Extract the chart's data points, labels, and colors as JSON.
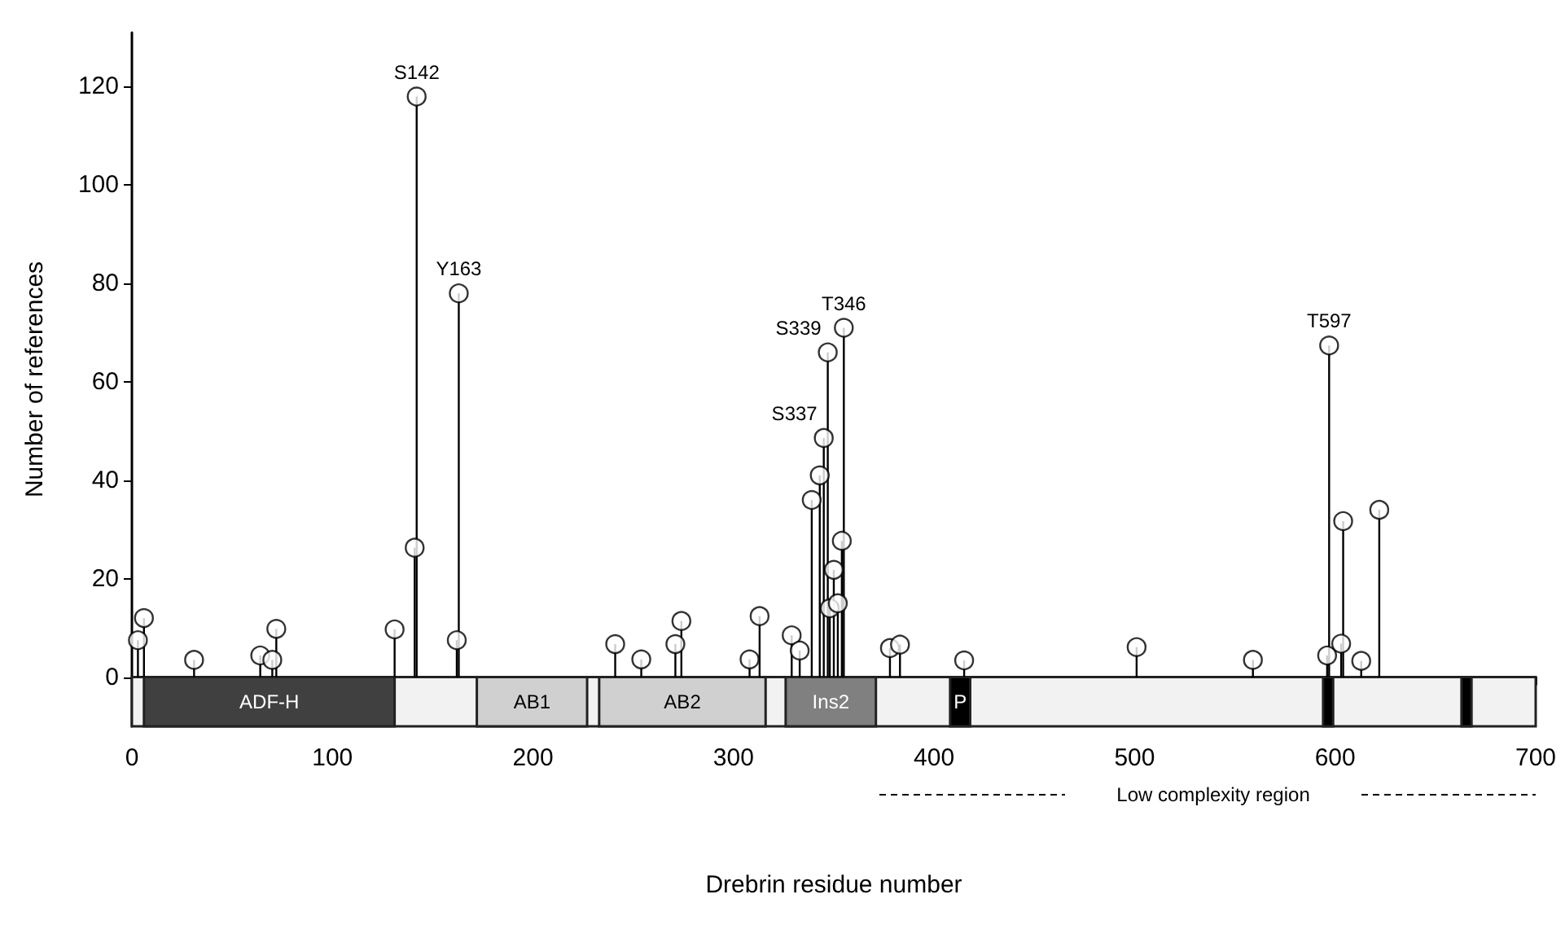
{
  "chart_data": {
    "type": "lollipop",
    "xlabel": "Drebrin residue number",
    "ylabel": "Number of references",
    "x": [
      3,
      6,
      31,
      64,
      70,
      72,
      131,
      141,
      142,
      162,
      163,
      241,
      254,
      271,
      274,
      308,
      313,
      329,
      333,
      339,
      343,
      345,
      347,
      348,
      350,
      352,
      354,
      355,
      378,
      383,
      415,
      501,
      559,
      596,
      597,
      603,
      604,
      613,
      622
    ],
    "values": [
      7.5,
      12,
      3.5,
      4.4,
      3.5,
      9.8,
      9.7,
      26.3,
      118,
      7.5,
      78,
      6.7,
      3.6,
      6.7,
      11.4,
      3.6,
      12.4,
      8.5,
      5.4,
      36,
      41,
      48.6,
      66,
      14,
      21.8,
      15,
      27.7,
      71,
      5.9,
      6.6,
      3.4,
      6.1,
      3.5,
      4.4,
      67.4,
      6.8,
      31.7,
      3.3,
      34
    ],
    "color": "#000000",
    "marker": "circle",
    "xlim": [
      0,
      700
    ],
    "xticks": [
      0,
      100,
      200,
      300,
      400,
      500,
      600,
      700
    ],
    "ylim": [
      -10,
      131
    ],
    "yticks": [
      0,
      20,
      40,
      60,
      80,
      100,
      120
    ],
    "annotations": [
      {
        "text": "S142",
        "x": 142,
        "y": 118
      },
      {
        "text": "Y163",
        "x": 163,
        "y": 78
      },
      {
        "text": "S337",
        "x": 345,
        "y": 48.6
      },
      {
        "text": "S339",
        "x": 347,
        "y": 66
      },
      {
        "text": "T346",
        "x": 355,
        "y": 71
      },
      {
        "text": "T597",
        "x": 597,
        "y": 67.4
      },
      "Low complexity region"
    ],
    "bands": [
      {
        "axis": "x",
        "from": 0,
        "to": 700,
        "color": "#f2f2f2"
      },
      {
        "axis": "x",
        "from": 6,
        "to": 131,
        "label": "ADF-H",
        "color": "#404040"
      },
      {
        "axis": "x",
        "from": 172,
        "to": 227,
        "label": "AB1",
        "color": "#d0d0d0"
      },
      {
        "axis": "x",
        "from": 233,
        "to": 316,
        "label": "AB2",
        "color": "#d0d0d0"
      },
      {
        "axis": "x",
        "from": 326,
        "to": 371,
        "label": "Ins2",
        "color": "#808080"
      },
      {
        "axis": "x",
        "from": 408,
        "to": 418,
        "label": "P",
        "color": "#000000"
      },
      {
        "axis": "x",
        "from": 594,
        "to": 599,
        "color": "#000000"
      },
      {
        "axis": "x",
        "from": 663,
        "to": 668,
        "color": "#000000"
      }
    ]
  }
}
